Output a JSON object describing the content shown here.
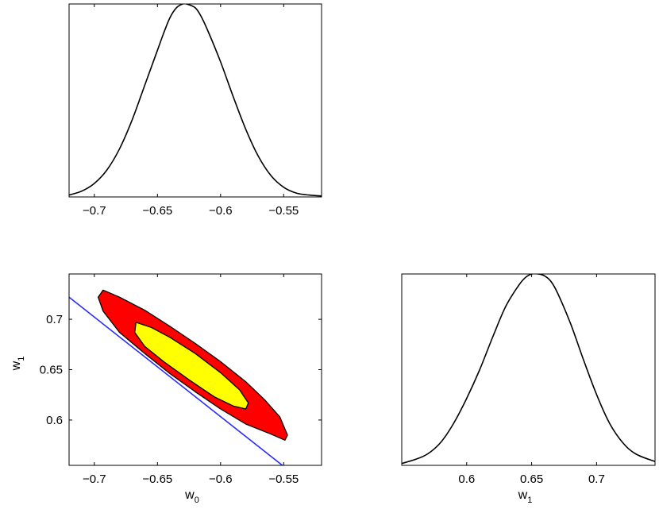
{
  "chart_data": [
    {
      "id": "w0-marginal",
      "type": "line",
      "title": "",
      "xlabel": "",
      "ylabel": "",
      "xlim": [
        -0.72,
        -0.52
      ],
      "ylim": [
        0,
        1.0
      ],
      "xticks": [
        -0.7,
        -0.65,
        -0.6,
        -0.55
      ],
      "xtick_labels": [
        "−0.7",
        "−0.65",
        "−0.6",
        "−0.55"
      ],
      "yticks": [],
      "grid": false,
      "series": [
        {
          "color": "#000000",
          "x": [
            -0.72,
            -0.71,
            -0.7,
            -0.69,
            -0.68,
            -0.67,
            -0.66,
            -0.65,
            -0.645,
            -0.64,
            -0.635,
            -0.63,
            -0.627,
            -0.62,
            -0.615,
            -0.61,
            -0.6,
            -0.59,
            -0.58,
            -0.57,
            -0.56,
            -0.55,
            -0.54,
            -0.53,
            -0.52
          ],
          "y": [
            0.01,
            0.03,
            0.07,
            0.14,
            0.25,
            0.4,
            0.58,
            0.76,
            0.85,
            0.93,
            0.98,
            1.0,
            1.0,
            0.98,
            0.93,
            0.86,
            0.7,
            0.52,
            0.35,
            0.21,
            0.11,
            0.05,
            0.02,
            0.01,
            0.005
          ]
        }
      ]
    },
    {
      "id": "joint-w0-w1",
      "type": "contour",
      "title": "",
      "xlabel": "w",
      "xlabel_sub": "0",
      "ylabel": "w",
      "ylabel_sub": "1",
      "xlim": [
        -0.72,
        -0.52
      ],
      "ylim": [
        0.555,
        0.745
      ],
      "xticks": [
        -0.7,
        -0.65,
        -0.6,
        -0.55
      ],
      "xtick_labels": [
        "−0.7",
        "−0.65",
        "−0.6",
        "−0.55"
      ],
      "yticks": [
        0.6,
        0.65,
        0.7
      ],
      "ytick_labels": [
        "0.6",
        "0.65",
        "0.7"
      ],
      "grid": false,
      "regions": [
        {
          "level": "outer",
          "fill": "#ff0000",
          "polygon": [
            [
              -0.693,
              0.729
            ],
            [
              -0.68,
              0.722
            ],
            [
              -0.66,
              0.709
            ],
            [
              -0.64,
              0.693
            ],
            [
              -0.62,
              0.676
            ],
            [
              -0.6,
              0.658
            ],
            [
              -0.58,
              0.638
            ],
            [
              -0.565,
              0.62
            ],
            [
              -0.553,
              0.603
            ],
            [
              -0.547,
              0.585
            ],
            [
              -0.549,
              0.58
            ],
            [
              -0.56,
              0.586
            ],
            [
              -0.58,
              0.596
            ],
            [
              -0.6,
              0.611
            ],
            [
              -0.62,
              0.628
            ],
            [
              -0.64,
              0.646
            ],
            [
              -0.66,
              0.666
            ],
            [
              -0.68,
              0.687
            ],
            [
              -0.693,
              0.708
            ],
            [
              -0.697,
              0.722
            ]
          ]
        },
        {
          "level": "inner",
          "fill": "#ffff00",
          "polygon": [
            [
              -0.667,
              0.697
            ],
            [
              -0.655,
              0.692
            ],
            [
              -0.64,
              0.682
            ],
            [
              -0.62,
              0.666
            ],
            [
              -0.6,
              0.647
            ],
            [
              -0.585,
              0.63
            ],
            [
              -0.578,
              0.617
            ],
            [
              -0.58,
              0.611
            ],
            [
              -0.59,
              0.614
            ],
            [
              -0.605,
              0.623
            ],
            [
              -0.625,
              0.64
            ],
            [
              -0.645,
              0.658
            ],
            [
              -0.66,
              0.673
            ],
            [
              -0.668,
              0.687
            ]
          ]
        }
      ],
      "lines": [
        {
          "color": "#2a2aff",
          "x": [
            -0.72,
            -0.55
          ],
          "y": [
            0.722,
            0.554
          ]
        }
      ]
    },
    {
      "id": "w1-marginal",
      "type": "line",
      "title": "",
      "xlabel": "w",
      "xlabel_sub": "1",
      "ylabel": "",
      "xlim": [
        0.55,
        0.745
      ],
      "ylim": [
        0,
        1.0
      ],
      "xticks": [
        0.6,
        0.65,
        0.7
      ],
      "xtick_labels": [
        "0.6",
        "0.65",
        "0.7"
      ],
      "yticks": [],
      "grid": false,
      "series": [
        {
          "color": "#000000",
          "x": [
            0.55,
            0.56,
            0.57,
            0.58,
            0.59,
            0.6,
            0.61,
            0.62,
            0.63,
            0.64,
            0.645,
            0.65,
            0.655,
            0.66,
            0.665,
            0.67,
            0.68,
            0.69,
            0.7,
            0.71,
            0.72,
            0.73,
            0.745
          ],
          "y": [
            0.01,
            0.03,
            0.06,
            0.12,
            0.22,
            0.35,
            0.5,
            0.67,
            0.83,
            0.94,
            0.98,
            1.0,
            1.0,
            0.99,
            0.96,
            0.9,
            0.74,
            0.55,
            0.37,
            0.22,
            0.12,
            0.06,
            0.02
          ]
        }
      ]
    }
  ]
}
